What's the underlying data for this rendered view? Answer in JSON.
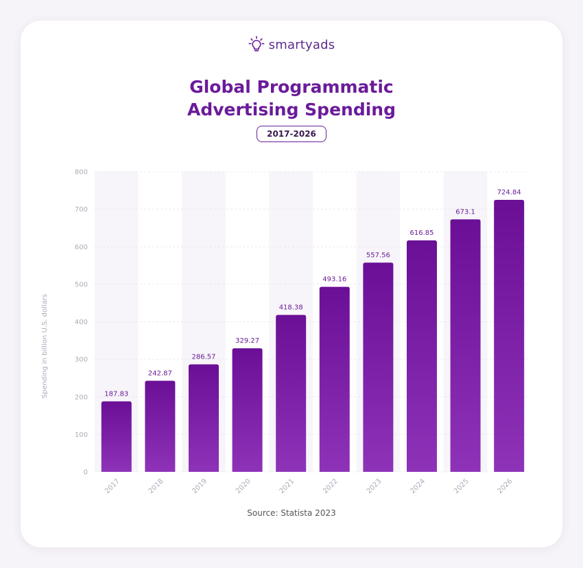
{
  "brand": {
    "name": "smartyads",
    "icon": "lightbulb-icon",
    "color": "#5e2b8a"
  },
  "title_lines": [
    "Global Programmatic",
    "Advertising Spending"
  ],
  "badge": "2017-2026",
  "source": "Source: Statista 2023",
  "colors": {
    "title": "#6a1b9a",
    "bar_top": "#6a0f96",
    "bar_bottom": "#8e33b8",
    "band": "#f7f5f9",
    "grid": "#e6e1ec",
    "tick": "#b0a9b8",
    "label": "#6a1b9a"
  },
  "chart_data": {
    "type": "bar",
    "title": "Global Programmatic Advertising Spending",
    "subtitle": "2017-2026",
    "categories": [
      "2017",
      "2018",
      "2019",
      "2020",
      "2021",
      "2022",
      "2023",
      "2024",
      "2025",
      "2026"
    ],
    "values": [
      187.83,
      242.87,
      286.57,
      329.27,
      418.38,
      493.16,
      557.56,
      616.85,
      673.1,
      724.84
    ],
    "value_labels": [
      "187.83",
      "242.87",
      "286.57",
      "329.27",
      "418.38",
      "493.16",
      "557.56",
      "616.85",
      "673.1",
      "724.84"
    ],
    "xlabel": "",
    "ylabel": "Spending in billion U.S. dollars",
    "ylim": [
      0,
      800
    ],
    "yticks": [
      0,
      100,
      200,
      300,
      400,
      500,
      600,
      700,
      800
    ],
    "grid": true,
    "legend": "none"
  }
}
